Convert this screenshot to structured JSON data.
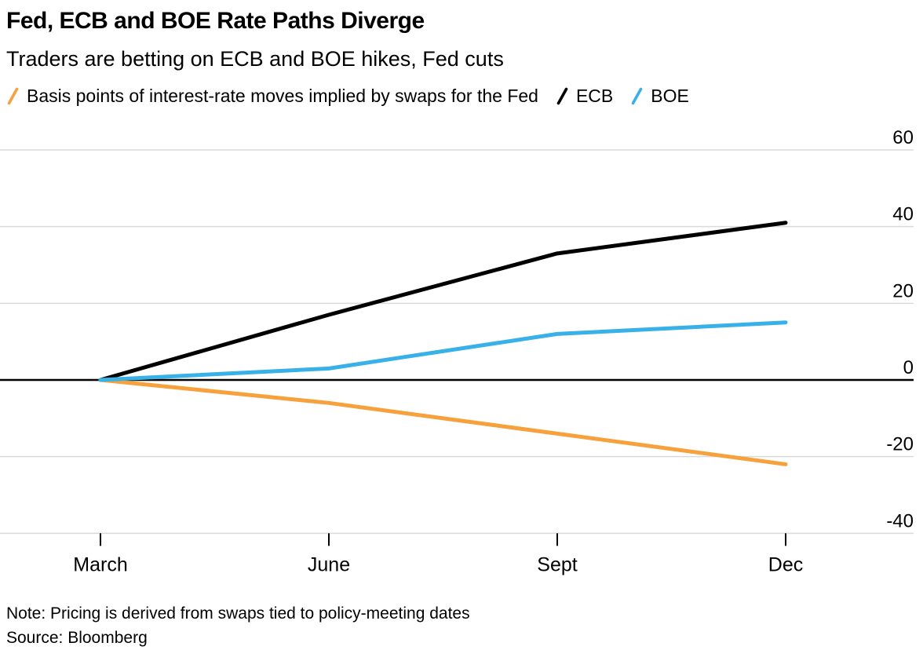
{
  "header": {
    "title": "Fed, ECB and BOE Rate Paths Diverge",
    "subtitle": "Traders are betting on ECB and BOE hikes, Fed cuts"
  },
  "legend": {
    "items": [
      {
        "label": "Basis points of interest-rate moves implied by swaps for the Fed",
        "color": "#F7A13C"
      },
      {
        "label": "ECB",
        "color": "#000000"
      },
      {
        "label": "BOE",
        "color": "#38B1E8"
      }
    ]
  },
  "chart_data": {
    "type": "line",
    "x": [
      "March",
      "June",
      "Sept",
      "Dec"
    ],
    "series": [
      {
        "name": "Fed",
        "color": "#F7A13C",
        "values": [
          0,
          -6,
          -14,
          -22
        ]
      },
      {
        "name": "ECB",
        "color": "#000000",
        "values": [
          0,
          17,
          33,
          41
        ]
      },
      {
        "name": "BOE",
        "color": "#38B1E8",
        "values": [
          0,
          3,
          12,
          15
        ]
      }
    ],
    "y_ticks": [
      60,
      40,
      20,
      0,
      -20,
      -40
    ],
    "ylim": [
      -47,
      63
    ],
    "grid": "horizontal",
    "zero_line": true,
    "y_axis_side": "right",
    "legend_position": "top"
  },
  "footer": {
    "note": "Note: Pricing is derived from swaps tied to policy-meeting dates",
    "source": "Source: Bloomberg"
  },
  "colors": {
    "grid": "#DADADA",
    "axis_text": "#000000",
    "background": "#FFFFFF"
  }
}
